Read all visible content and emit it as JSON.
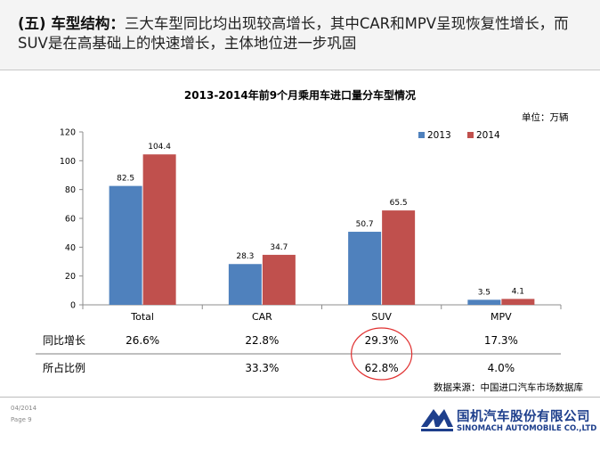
{
  "header": {
    "title_bold": "(五) 车型结构：",
    "title_rest": "三大车型同比均出现较高增长，其中CAR和MPV呈现恢复性增长，而SUV是在高基础上的快速增长，主体地位进一步巩固"
  },
  "chart_data": {
    "type": "bar",
    "title": "2013-2014年前9个月乘用车进口量分车型情况",
    "unit_label": "单位：万辆",
    "categories": [
      "Total",
      "CAR",
      "SUV",
      "MPV"
    ],
    "series": [
      {
        "name": "2013",
        "color": "#4f81bd",
        "values": [
          82.5,
          28.3,
          50.7,
          3.5
        ]
      },
      {
        "name": "2014",
        "color": "#c0504d",
        "values": [
          104.4,
          34.7,
          65.5,
          4.1
        ]
      }
    ],
    "ylim": [
      0,
      120
    ],
    "yticks": [
      0,
      20,
      40,
      60,
      80,
      100,
      120
    ],
    "legend_position": "top-right",
    "grid": false
  },
  "table": {
    "rows": [
      {
        "label": "同比增长",
        "values": [
          "26.6%",
          "22.8%",
          "29.3%",
          "17.3%"
        ]
      },
      {
        "label": "所占比例",
        "values": [
          "",
          "33.3%",
          "62.8%",
          "4.0%"
        ]
      }
    ],
    "highlight_color": "#e03030"
  },
  "source": "数据来源：中国进口汽车市场数据库",
  "footer": {
    "date": "04/2014",
    "page": "Page 9",
    "logo_cn": "国机汽车股份有限公司",
    "logo_en": "SINOMACH AUTOMOBILE CO.,LTD"
  }
}
